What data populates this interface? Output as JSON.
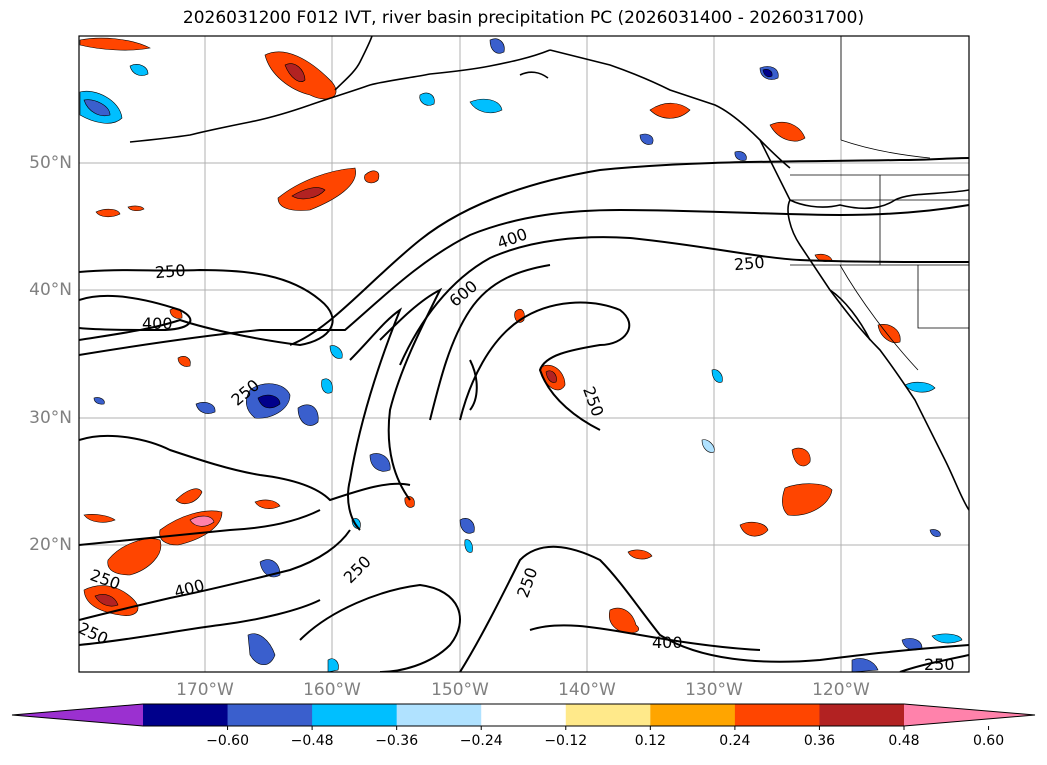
{
  "title": "2026031200 F012 IVT, river basin precipitation PC (2026031400 - 2026031700)",
  "map": {
    "lat_labels": [
      "50°N",
      "40°N",
      "30°N",
      "20°N"
    ],
    "lon_labels": [
      "170°W",
      "160°W",
      "150°W",
      "140°W",
      "130°W",
      "120°W"
    ],
    "contour_labels": [
      "250",
      "400",
      "250",
      "400",
      "600",
      "250",
      "250",
      "250",
      "400",
      "250",
      "250",
      "250",
      "400",
      "250"
    ]
  },
  "colorbar": {
    "ticks": [
      "−0.60",
      "−0.48",
      "−0.36",
      "−0.24",
      "−0.12",
      "0.12",
      "0.24",
      "0.36",
      "0.48",
      "0.60"
    ],
    "colors": [
      "#9b30d0",
      "#00008b",
      "#3a5fcd",
      "#00bfff",
      "#b0e2ff",
      "#ffffff",
      "#ffe98a",
      "#ffa500",
      "#ff4500",
      "#b22222",
      "#ff82ab"
    ]
  }
}
